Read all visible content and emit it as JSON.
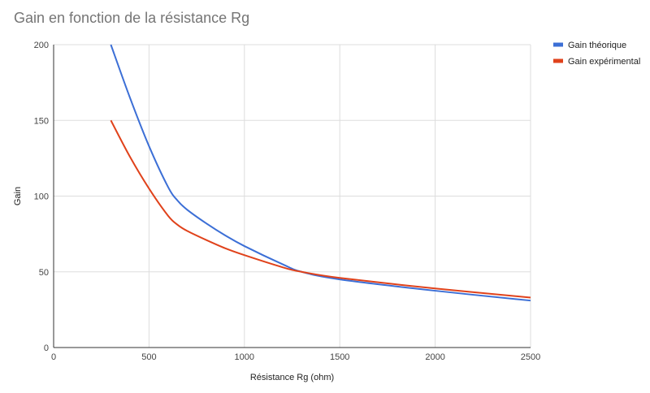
{
  "chart_data": {
    "type": "line",
    "title": "Gain en fonction de la résistance Rg",
    "xlabel": "Résistance Rg (ohm)",
    "ylabel": "Gain",
    "xlim": [
      0,
      2500
    ],
    "ylim": [
      0,
      200
    ],
    "xticks": [
      "0",
      "500",
      "1000",
      "1500",
      "2000",
      "2500"
    ],
    "yticks": [
      "0",
      "50",
      "100",
      "150",
      "200"
    ],
    "grid": true,
    "legend_position": "right",
    "series": [
      {
        "name": "Gain théorique",
        "color": "#3c6fd6",
        "x": [
          300,
          400,
          500,
          600,
          650,
          700,
          800,
          900,
          1000,
          1200,
          1300,
          1500,
          2000,
          2500
        ],
        "y": [
          200,
          165,
          133,
          106,
          97,
          91,
          82,
          74,
          67,
          55,
          50,
          45,
          37.5,
          31
        ]
      },
      {
        "name": "Gain expérimental",
        "color": "#e0421b",
        "x": [
          300,
          400,
          500,
          600,
          650,
          700,
          800,
          900,
          1000,
          1200,
          1300,
          1500,
          2000,
          2500
        ],
        "y": [
          150,
          126,
          105,
          87,
          81,
          77,
          71,
          65.5,
          61,
          53,
          50,
          46,
          39,
          33
        ]
      }
    ]
  }
}
